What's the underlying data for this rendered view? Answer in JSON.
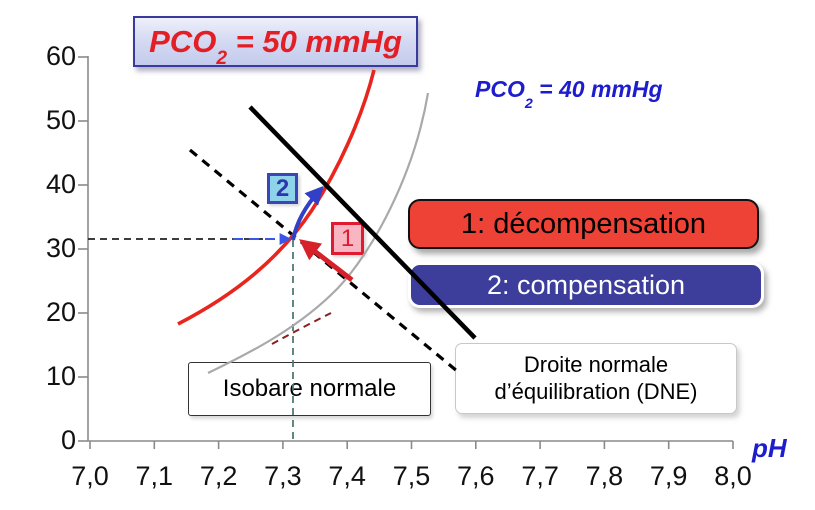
{
  "title_box": {
    "prefix": "PCO",
    "sub": "2",
    "suffix": " = 50 mmHg",
    "text_color": "#e31e24",
    "border_color": "#3a3a9e"
  },
  "isobar40_label": {
    "prefix": "PCO",
    "sub": "2",
    "suffix": " = 40 mmHg",
    "color": "#1d1dce"
  },
  "callouts": {
    "decompensation": {
      "label": "1: décompensation",
      "bg": "#ee4237",
      "text_color": "#000000"
    },
    "compensation": {
      "label": "2: compensation",
      "bg": "#3d3d9c",
      "text_color": "#ffffff"
    }
  },
  "chips": {
    "one": {
      "label": "1",
      "color": "#de1b31",
      "bg": "#f7b6c2"
    },
    "two": {
      "label": "2",
      "color": "#2c37ae",
      "bg": "#8ed3ea"
    }
  },
  "boxes": {
    "isobare": {
      "label": "Isobare normale"
    },
    "dne": {
      "line1": "Droite normale",
      "line2": "d’équilibration (DNE)"
    }
  },
  "axis": {
    "x_label": "pH",
    "x_label_color": "#1d1dce"
  },
  "chart_data": {
    "type": "line",
    "title": "PCO2 = 50 mmHg",
    "xlabel": "pH",
    "ylabel": "",
    "xlim": [
      7.0,
      8.0
    ],
    "ylim": [
      0,
      60
    ],
    "grid": false,
    "x_tick_labels": [
      "7,0",
      "7,1",
      "7,2",
      "7,3",
      "7,4",
      "7,5",
      "7,6",
      "7,7",
      "7,8",
      "7,9",
      "8,0"
    ],
    "y_tick_labels": [
      "0",
      "10",
      "20",
      "30",
      "40",
      "50",
      "60"
    ],
    "normal_point": {
      "pH": 7.31,
      "value": 31.5,
      "guides": "dashed horizontal and vertical lines"
    },
    "series": [
      {
        "name": "PCO2 = 50 mmHg (isobare)",
        "style": "solid curve",
        "color": "#e8261d",
        "points": [
          [
            7.14,
            18.3
          ],
          [
            7.22,
            26.0
          ],
          [
            7.31,
            31.6
          ],
          [
            7.37,
            38.5
          ],
          [
            7.42,
            50.0
          ],
          [
            7.44,
            58.0
          ]
        ]
      },
      {
        "name": "PCO2 = 40 mmHg (isobare normale)",
        "style": "solid curve",
        "color": "#a9a9a9",
        "points": [
          [
            7.18,
            10.6
          ],
          [
            7.3,
            16.0
          ],
          [
            7.38,
            23.0
          ],
          [
            7.45,
            34.0
          ],
          [
            7.5,
            47.0
          ],
          [
            7.53,
            54.4
          ]
        ]
      },
      {
        "name": "Droite normale d'équilibration (DNE)",
        "style": "dashed line",
        "color": "#000000",
        "points": [
          [
            7.16,
            45.5
          ],
          [
            7.57,
            10.9
          ]
        ]
      },
      {
        "name": "ligne d'équilibration (trait plein)",
        "style": "solid line",
        "color": "#000000",
        "points": [
          [
            7.25,
            52.2
          ],
          [
            7.6,
            16.1
          ]
        ]
      },
      {
        "name": "segment pointillé rouge foncé",
        "style": "dashed curve",
        "color": "#8a1f1f",
        "points": [
          [
            7.28,
            15.2
          ],
          [
            7.37,
            19.9
          ]
        ]
      }
    ],
    "annotations": [
      {
        "id": "1",
        "text": "1: décompensation",
        "color": "#d7202a",
        "arrow_from": [
          7.41,
          25.2
        ],
        "arrow_to": [
          7.33,
          31.1
        ]
      },
      {
        "id": "2",
        "text": "2: compensation",
        "color": "#3240c8",
        "arrow_from": [
          7.32,
          31.3
        ],
        "arrow_to": [
          7.36,
          39.4
        ]
      },
      {
        "id": "blue-guide-arrow",
        "color": "#3a56e8",
        "arrow_from": [
          7.22,
          31.6
        ],
        "arrow_to": [
          7.32,
          31.6
        ]
      }
    ],
    "legend_position": "none"
  }
}
